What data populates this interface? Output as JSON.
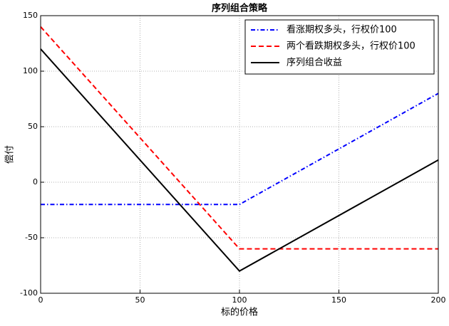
{
  "chart_data": {
    "type": "line",
    "title": "序列组合策略",
    "x_label": "标的价格",
    "y_label": "偿付",
    "x": [
      0,
      100,
      200
    ],
    "series": [
      {
        "name": "看涨期权多头，行权价100",
        "color": "#0000ff",
        "style": "dashdot",
        "values": [
          -20,
          -20,
          80
        ]
      },
      {
        "name": "两个看跌期权多头，行权价100",
        "color": "#ff0000",
        "style": "dashed",
        "values": [
          140,
          -60,
          -60
        ]
      },
      {
        "name": "序列组合收益",
        "color": "#000000",
        "style": "solid",
        "values": [
          120,
          -80,
          20
        ]
      }
    ],
    "xlim": [
      0,
      200
    ],
    "xticks": [
      0,
      50,
      100,
      150,
      200
    ],
    "ylim": [
      -100,
      150
    ],
    "yticks": [
      -100,
      -50,
      0,
      50,
      100,
      150
    ],
    "grid": true,
    "legend": "upper right"
  }
}
